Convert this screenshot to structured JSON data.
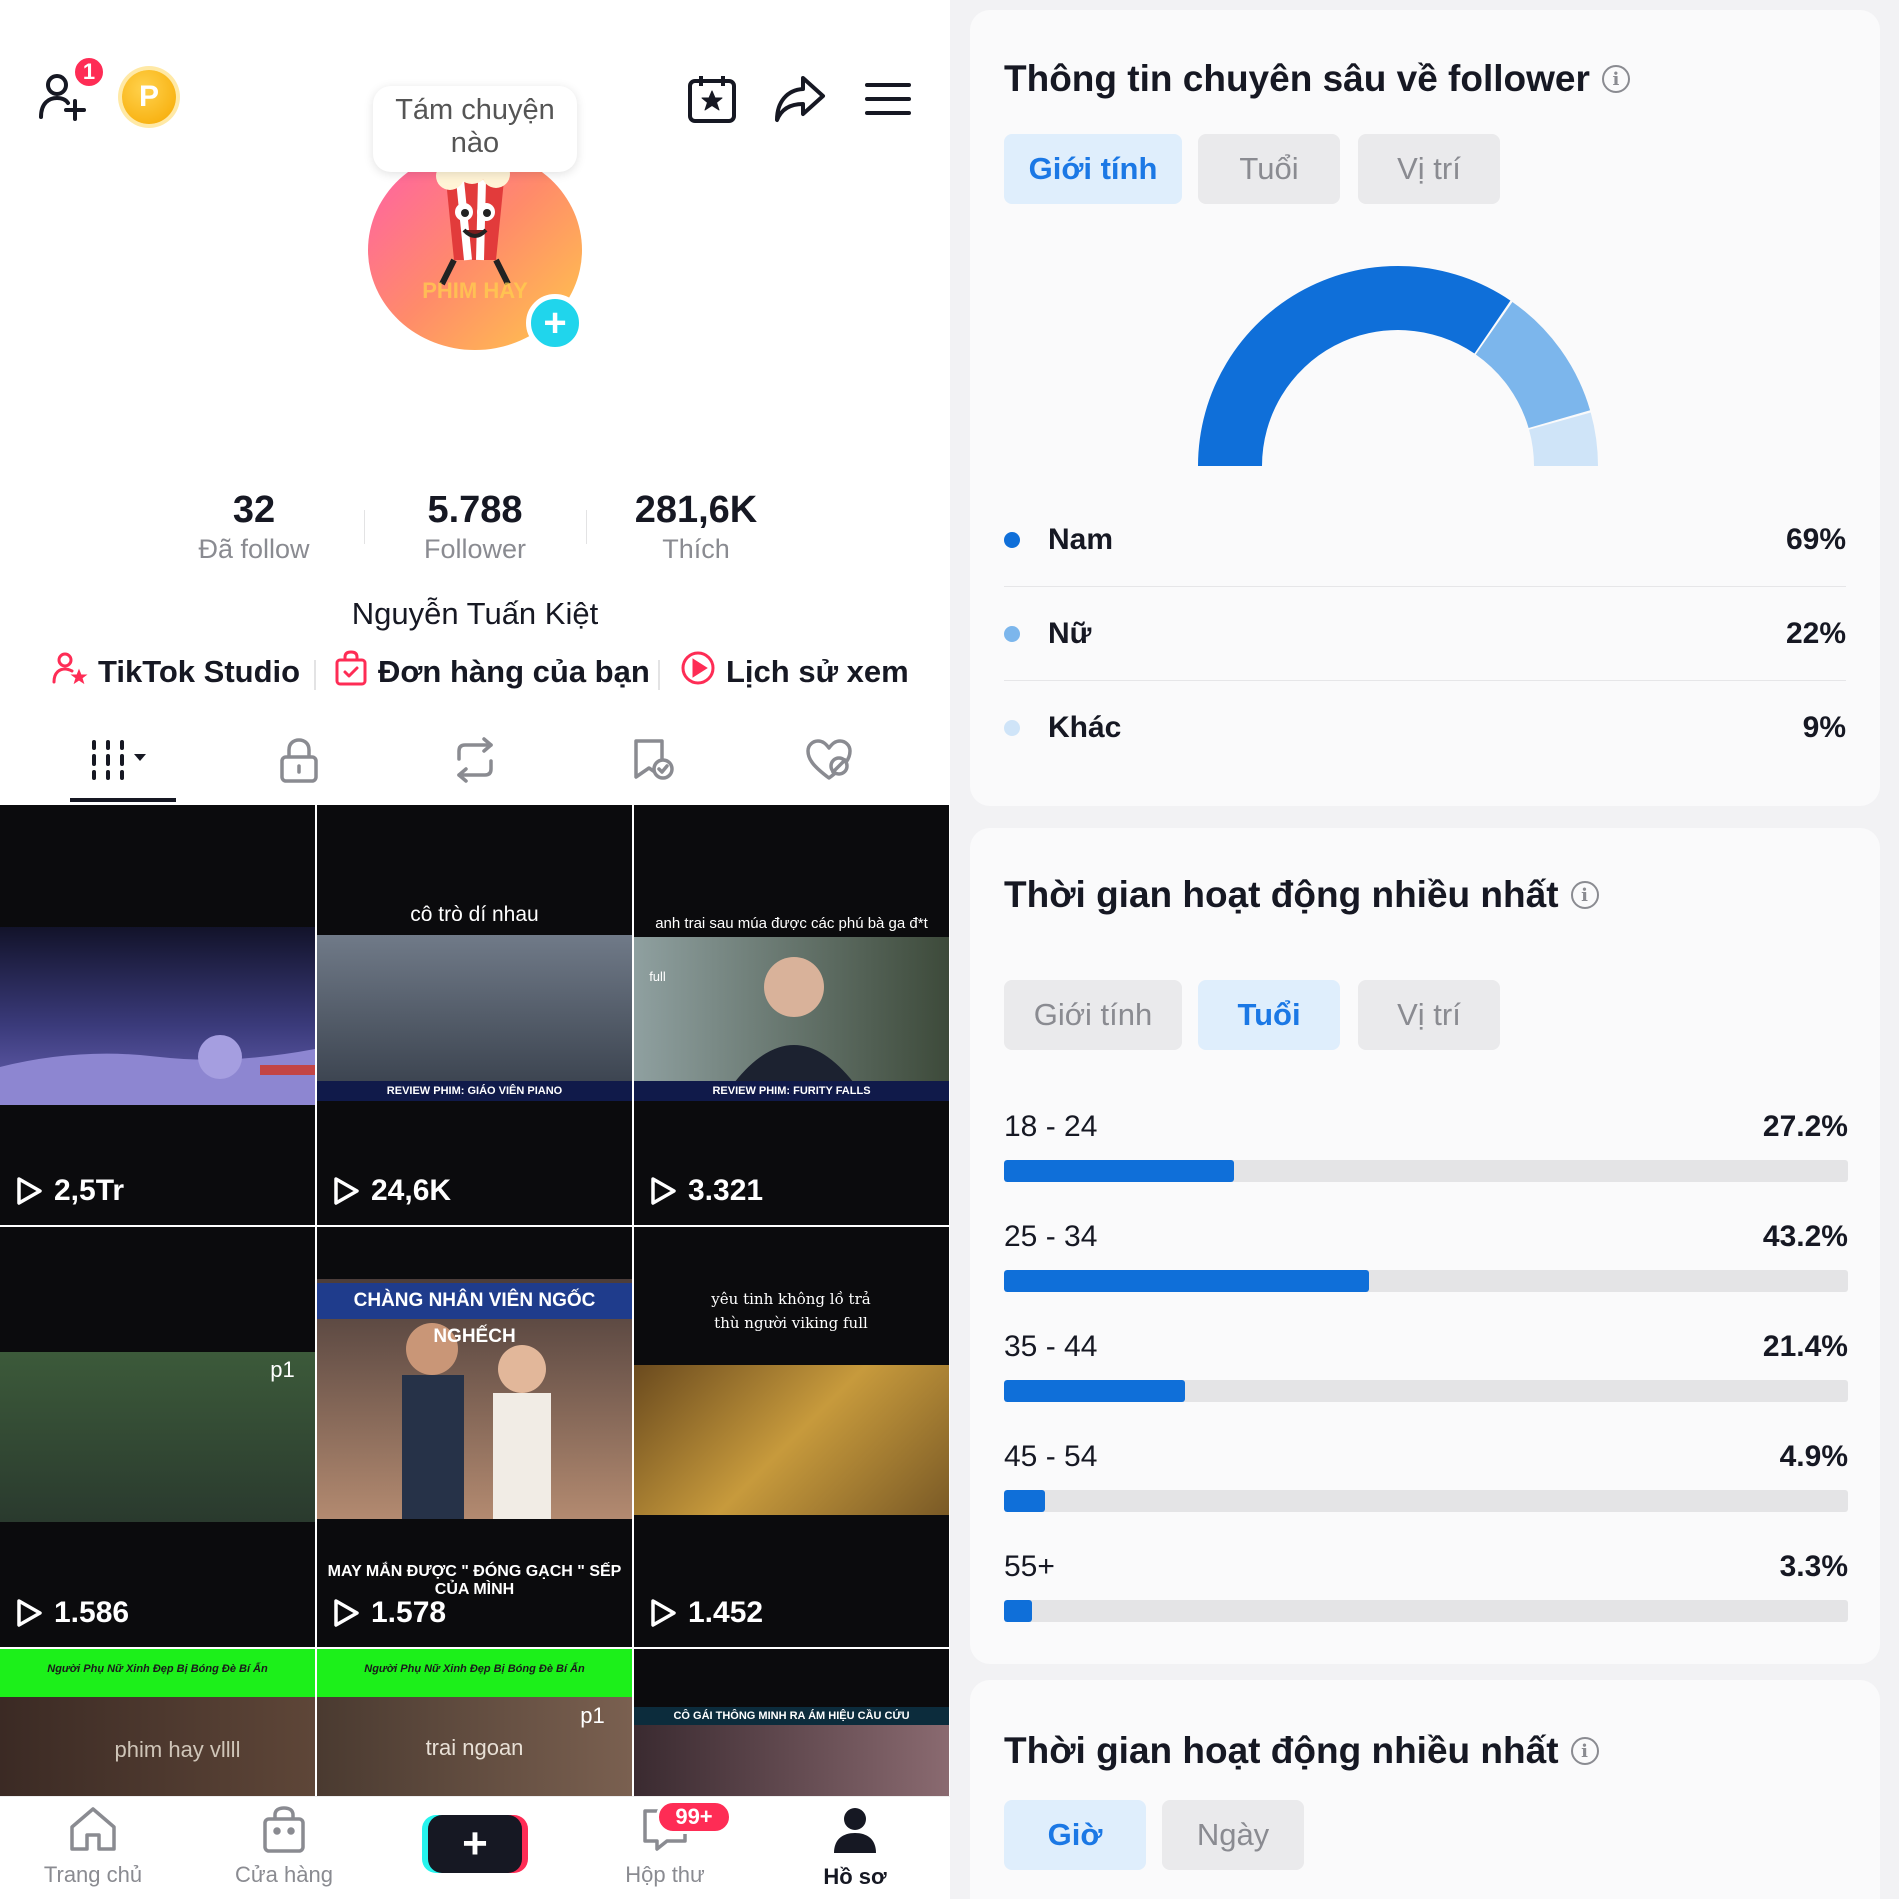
{
  "profile": {
    "notification_count": "1",
    "coin_label": "P",
    "bubble_text": "Tám chuyện nào",
    "stats": [
      {
        "value": "32",
        "label": "Đã follow"
      },
      {
        "value": "5.788",
        "label": "Follower"
      },
      {
        "value": "281,6K",
        "label": "Thích"
      }
    ],
    "username": "Nguyễn Tuấn Kiệt",
    "quick_links": [
      {
        "label": "TikTok Studio",
        "icon": "person-star-icon"
      },
      {
        "label": "Đơn hàng của bạn",
        "icon": "shopping-bag-icon"
      },
      {
        "label": "Lịch sử xem",
        "icon": "play-circle-icon"
      }
    ],
    "content_tabs": [
      "grid-icon",
      "lock-icon",
      "repost-icon",
      "saved-icon",
      "liked-icon"
    ],
    "videos": [
      {
        "views": "2,5Tr",
        "caption": ""
      },
      {
        "views": "24,6K",
        "caption": "cô trò dí nhau",
        "strip": "REVIEW PHIM: GIÁO VIÊN PIANO"
      },
      {
        "views": "3.321",
        "caption": "anh trai sau múa được các phú bà ga đ*t",
        "strip": "REVIEW PHIM: FURITY FALLS",
        "tag": "full"
      },
      {
        "views": "1.586",
        "caption": "",
        "tag": "p1"
      },
      {
        "views": "1.578",
        "caption": "CHÀNG NHÂN VIÊN NGỐC NGHẾCH",
        "bottom_caption": "MAY MẮN ĐƯỢC \" ĐÓNG GẠCH \" SẾP CỦA MÌNH"
      },
      {
        "views": "1.452",
        "caption": "yêu tinh không lồ trả thù người viking full"
      },
      {
        "views": "",
        "caption": "Người Phụ Nữ Xinh Đẹp Bị Bóng Đè Bí Ẩn",
        "overlay": "phim hay vllll"
      },
      {
        "views": "",
        "caption": "Người Phụ Nữ Xinh Đẹp Bị Bóng Đè Bí Ẩn",
        "overlay": "trai ngoan",
        "tag": "p1"
      },
      {
        "views": "",
        "caption": "CÔ GÁI THÔNG MINH RA ÁM HIỆU CẦU CỨU"
      }
    ],
    "bottom_nav": [
      {
        "label": "Trang chủ",
        "icon": "home-icon"
      },
      {
        "label": "Cửa hàng",
        "icon": "shop-bag-icon"
      },
      {
        "label": "",
        "icon": "plus-icon"
      },
      {
        "label": "Hộp thư",
        "icon": "inbox-icon",
        "badge": "99+"
      },
      {
        "label": "Hồ sơ",
        "icon": "person-icon",
        "active": true
      }
    ]
  },
  "insights": {
    "title": "Thông tin chuyên sâu về follower",
    "tabs": [
      "Giới tính",
      "Tuổi",
      "Vị trí"
    ],
    "active_tab": "Giới tính",
    "gender": [
      {
        "label": "Nam",
        "value": "69%",
        "color": "#0f6fd9"
      },
      {
        "label": "Nữ",
        "value": "22%",
        "color": "#7cb6ec"
      },
      {
        "label": "Khác",
        "value": "9%",
        "color": "#cfe4f8"
      }
    ]
  },
  "active_times": {
    "title": "Thời gian hoạt động nhiều nhất",
    "tabs": [
      "Giới tính",
      "Tuổi",
      "Vị trí"
    ],
    "active_tab": "Tuổi",
    "ages": [
      {
        "range": "18 - 24",
        "value": "27.2%",
        "fraction": 0.272
      },
      {
        "range": "25 - 34",
        "value": "43.2%",
        "fraction": 0.432
      },
      {
        "range": "35 - 44",
        "value": "21.4%",
        "fraction": 0.214
      },
      {
        "range": "45 - 54",
        "value": "4.9%",
        "fraction": 0.049
      },
      {
        "range": "55+",
        "value": "3.3%",
        "fraction": 0.033
      }
    ]
  },
  "active_times_2": {
    "title": "Thời gian hoạt động nhiều nhất",
    "tabs": [
      "Giờ",
      "Ngày"
    ],
    "active_tab": "Giờ"
  },
  "colors": {
    "accent_blue": "#1b78e5",
    "bar_blue": "#0f6fd9",
    "tiktok_red": "#fe2c55",
    "tiktok_cyan": "#25f4ee"
  }
}
